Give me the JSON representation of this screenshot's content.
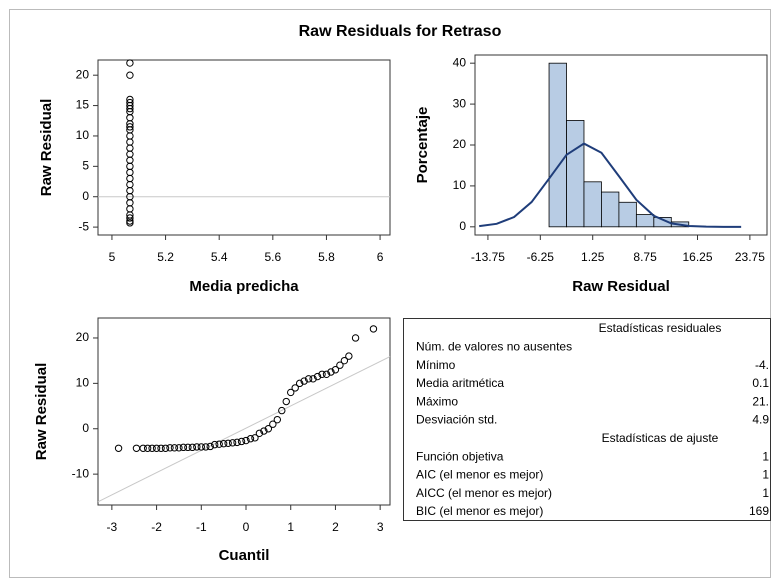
{
  "title": "Raw Residuals for Retraso",
  "chart_data": [
    {
      "type": "scatter",
      "xlabel": "Media predicha",
      "ylabel": "Raw Residual",
      "x": [
        5.067,
        5.067,
        5.067,
        5.067,
        5.067,
        5.067,
        5.067,
        5.067,
        5.067,
        5.067,
        5.067,
        5.067,
        5.067,
        5.067,
        5.067,
        5.067,
        5.067,
        5.067,
        5.067,
        5.067,
        5.067,
        5.067,
        5.067,
        5.067,
        5.067,
        5.067,
        5.067,
        5.067
      ],
      "y": [
        22,
        20,
        16,
        15.5,
        15,
        14.5,
        14,
        13,
        12,
        11.5,
        11,
        10,
        9,
        8,
        7,
        6,
        5,
        4,
        3,
        2,
        1,
        0,
        -1,
        -2,
        -3,
        -3.5,
        -4,
        -4.3
      ],
      "xlim": [
        4.948,
        6.037
      ],
      "ylim": [
        -6.3,
        22.5
      ],
      "xticks": [
        5,
        5.2,
        5.4,
        5.6,
        5.8,
        6
      ],
      "yticks": [
        -5,
        0,
        5,
        10,
        15,
        20
      ],
      "ref_y": 0
    },
    {
      "type": "histogram",
      "xlabel": "Raw Residual",
      "ylabel": "Porcentaje",
      "bins": [
        -5,
        -2.5,
        0,
        2.5,
        5,
        7.5,
        10,
        12.5,
        15
      ],
      "values": [
        40,
        26,
        11,
        8.5,
        6,
        3,
        2.3,
        1.2
      ],
      "color": "#b8cce4",
      "curve": {
        "color": "#1f3d7a",
        "x": [
          -15,
          -12.5,
          -10,
          -7.5,
          -5,
          -2.5,
          0,
          2.5,
          5,
          7.5,
          10,
          12.5,
          15,
          17.5,
          20,
          22.5
        ],
        "values": [
          0.17,
          0.73,
          2.4,
          6.05,
          11.76,
          17.6,
          20.35,
          18.1,
          12.4,
          6.6,
          2.7,
          0.84,
          0.2,
          0.04,
          0,
          0
        ]
      },
      "xlim": [
        -15.6,
        26.2
      ],
      "ylim": [
        -2,
        42
      ],
      "xticks": [
        -13.75,
        -6.25,
        1.25,
        8.75,
        16.25,
        23.75
      ],
      "yticks": [
        0,
        10,
        20,
        30,
        40
      ]
    },
    {
      "type": "qq",
      "xlabel": "Cuantil",
      "ylabel": "Raw Residual",
      "x": [
        -2.85,
        -2.45,
        -2.3,
        -2.2,
        -2.1,
        -2.0,
        -1.9,
        -1.8,
        -1.7,
        -1.6,
        -1.5,
        -1.4,
        -1.3,
        -1.2,
        -1.1,
        -1.0,
        -0.9,
        -0.8,
        -0.7,
        -0.6,
        -0.5,
        -0.4,
        -0.3,
        -0.2,
        -0.1,
        0,
        0.1,
        0.2,
        0.3,
        0.4,
        0.5,
        0.6,
        0.7,
        0.8,
        0.9,
        1.0,
        1.1,
        1.2,
        1.3,
        1.4,
        1.5,
        1.6,
        1.7,
        1.8,
        1.9,
        2.0,
        2.1,
        2.2,
        2.3,
        2.45,
        2.85
      ],
      "y": [
        -4.3,
        -4.3,
        -4.3,
        -4.3,
        -4.3,
        -4.3,
        -4.3,
        -4.3,
        -4.2,
        -4.2,
        -4.2,
        -4.1,
        -4.1,
        -4.1,
        -4,
        -4,
        -4,
        -3.9,
        -3.5,
        -3.4,
        -3.3,
        -3.2,
        -3.1,
        -3,
        -2.8,
        -2.6,
        -2.2,
        -2,
        -1,
        -0.5,
        0,
        1,
        2,
        4,
        6,
        8,
        9,
        10,
        10.5,
        11,
        11,
        11.5,
        12,
        12,
        12.5,
        13,
        14,
        15,
        16,
        20,
        22
      ],
      "xlim": [
        -3.31,
        3.22
      ],
      "ylim": [
        -16.8,
        24.4
      ],
      "xticks": [
        -3,
        -2,
        -1,
        0,
        1,
        2,
        3
      ],
      "yticks": [
        -10,
        0,
        10,
        20
      ],
      "ref_line": {
        "intercept": 0.13,
        "slope": 4.9
      }
    }
  ],
  "table": {
    "sections": [
      {
        "header": "Estadísticas residuales",
        "rows": [
          [
            "Núm. de valores no ausentes"
          ],
          [
            "Mínimo",
            "-4."
          ],
          [
            "Media aritmética",
            "0.1"
          ],
          [
            "Máximo",
            "21."
          ],
          [
            "Desviación std.",
            "4.9"
          ]
        ]
      },
      {
        "header": "Estadísticas de ajuste",
        "rows": [
          [
            "Función objetiva",
            "1"
          ],
          [
            "AIC (el menor es mejor)",
            "1"
          ],
          [
            "AICC (el menor es mejor)",
            "1"
          ],
          [
            "BIC (el menor es mejor)",
            "169"
          ]
        ]
      }
    ]
  }
}
